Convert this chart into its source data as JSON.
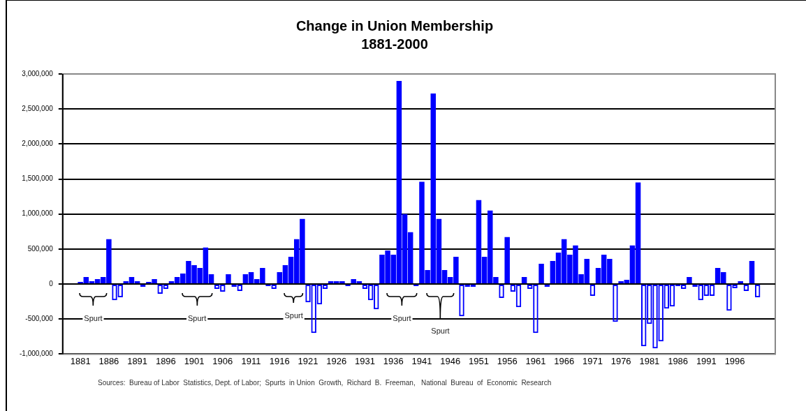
{
  "chart_data": {
    "type": "bar",
    "title": "Change in Union Membership",
    "subtitle": "1881-2000",
    "color": "#0000ff",
    "x": [
      1881,
      1882,
      1883,
      1884,
      1885,
      1886,
      1887,
      1888,
      1889,
      1890,
      1891,
      1892,
      1893,
      1894,
      1895,
      1896,
      1897,
      1898,
      1899,
      1900,
      1901,
      1902,
      1903,
      1904,
      1905,
      1906,
      1907,
      1908,
      1909,
      1910,
      1911,
      1912,
      1913,
      1914,
      1915,
      1916,
      1917,
      1918,
      1919,
      1920,
      1921,
      1922,
      1923,
      1924,
      1925,
      1926,
      1927,
      1928,
      1929,
      1930,
      1931,
      1932,
      1933,
      1934,
      1935,
      1936,
      1937,
      1938,
      1939,
      1940,
      1941,
      1942,
      1943,
      1944,
      1945,
      1946,
      1947,
      1948,
      1949,
      1950,
      1951,
      1952,
      1953,
      1954,
      1955,
      1956,
      1957,
      1958,
      1959,
      1960,
      1961,
      1962,
      1963,
      1964,
      1965,
      1966,
      1967,
      1968,
      1969,
      1970,
      1971,
      1972,
      1973,
      1974,
      1975,
      1976,
      1977,
      1978,
      1979,
      1980,
      1981,
      1982,
      1983,
      1984,
      1985,
      1986,
      1987,
      1988,
      1989,
      1990,
      1991,
      1992,
      1993,
      1994,
      1995,
      1996,
      1997,
      1998,
      1999,
      2000
    ],
    "values": [
      30000,
      100000,
      40000,
      70000,
      100000,
      640000,
      -230000,
      -190000,
      40000,
      100000,
      40000,
      -40000,
      30000,
      70000,
      -140000,
      -70000,
      40000,
      100000,
      150000,
      330000,
      270000,
      230000,
      520000,
      140000,
      -70000,
      -110000,
      140000,
      -40000,
      -100000,
      140000,
      170000,
      70000,
      230000,
      -30000,
      -70000,
      170000,
      270000,
      390000,
      640000,
      930000,
      -260000,
      -700000,
      -290000,
      -70000,
      40000,
      40000,
      40000,
      -30000,
      70000,
      40000,
      -70000,
      -230000,
      -360000,
      420000,
      480000,
      420000,
      2900000,
      1000000,
      740000,
      -30000,
      1460000,
      200000,
      2720000,
      930000,
      200000,
      100000,
      390000,
      -460000,
      -40000,
      -40000,
      1200000,
      390000,
      1050000,
      100000,
      -200000,
      670000,
      -110000,
      -330000,
      100000,
      -70000,
      -700000,
      290000,
      -40000,
      330000,
      450000,
      640000,
      420000,
      550000,
      140000,
      360000,
      -170000,
      230000,
      420000,
      360000,
      -540000,
      40000,
      60000,
      550000,
      1450000,
      -890000,
      -570000,
      -920000,
      -820000,
      -350000,
      -320000,
      -30000,
      -70000,
      100000,
      -40000,
      -230000,
      -170000,
      -170000,
      230000,
      170000,
      -380000,
      -60000,
      40000,
      -100000,
      330000,
      -190000
    ],
    "xlim": [
      1880.5,
      2000.5
    ],
    "xticks": [
      1881,
      1886,
      1891,
      1896,
      1901,
      1906,
      1911,
      1916,
      1921,
      1926,
      1931,
      1936,
      1941,
      1946,
      1951,
      1956,
      1961,
      1966,
      1971,
      1976,
      1981,
      1986,
      1991,
      1996
    ],
    "ylim": [
      -1000000,
      3000000
    ],
    "yticks": [
      {
        "value": -1000000,
        "label": "-1,000,000"
      },
      {
        "value": -500000,
        "label": "-500,000"
      },
      0,
      {
        "value": 500000,
        "label": "500,000"
      },
      {
        "value": 1000000,
        "label": "1,000,000"
      },
      {
        "value": 1500000,
        "label": "1,500,000"
      },
      {
        "value": 2000000,
        "label": "2,000,000"
      },
      {
        "value": 2500000,
        "label": "2,500,000"
      },
      {
        "value": 3000000,
        "label": "3,000,000"
      }
    ],
    "grid": "y",
    "legend": false,
    "annotations": [
      "Spurt",
      "Spurt",
      "Spurt",
      "Spurt",
      "Spurt",
      "Sources:  Bureau of Labor  Statistics, Dept. of Labor;  Spurts  in Union  Growth,  Richard  B.  Freeman,   National  Bureau  of  Economic  Research"
    ]
  }
}
